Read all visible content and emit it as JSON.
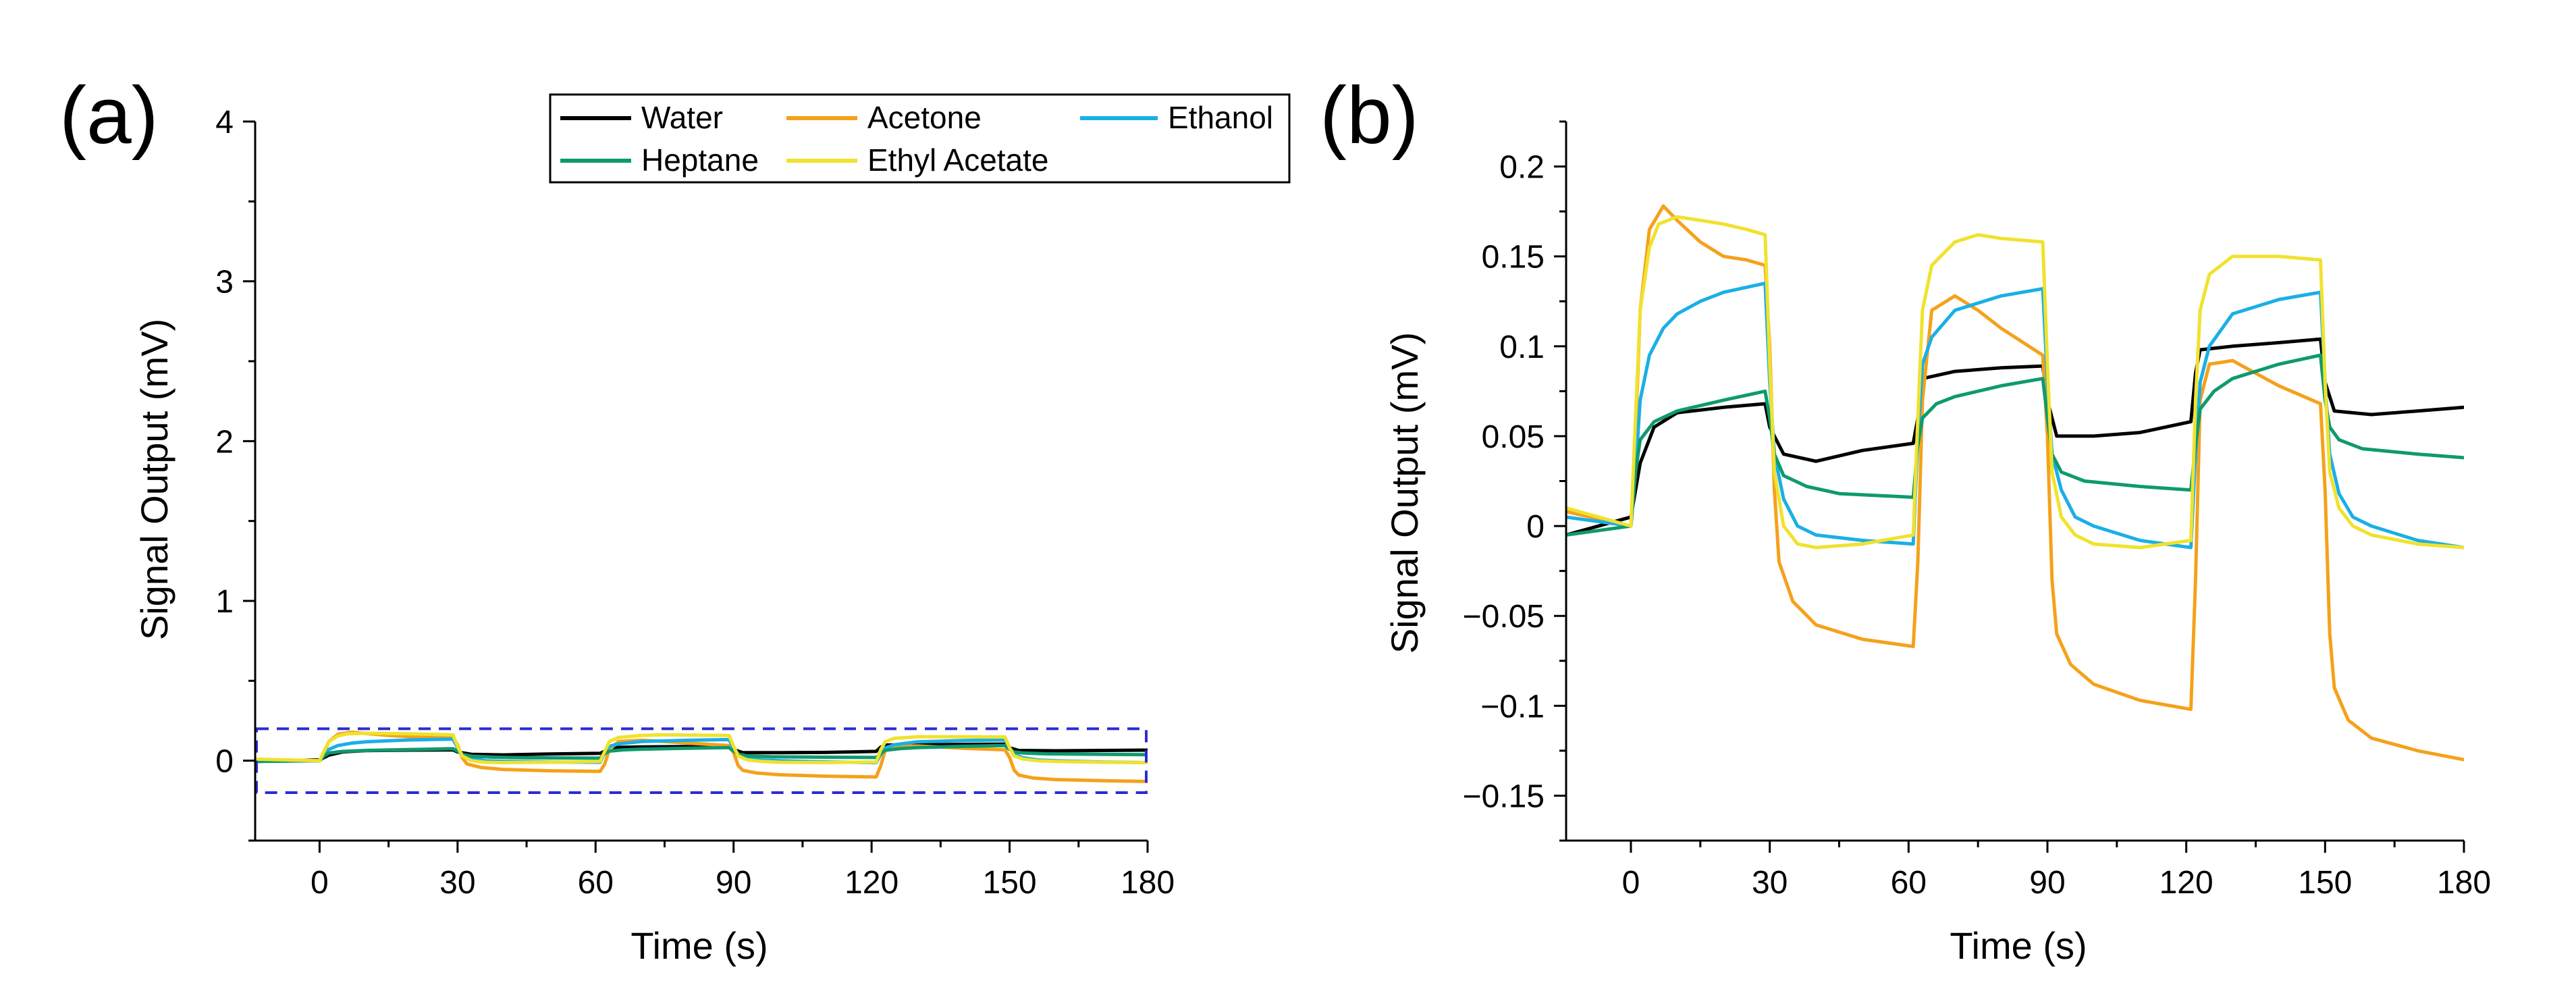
{
  "chart_data": [
    {
      "type": "line",
      "panel_label": "(a)",
      "xlabel": "Time (s)",
      "ylabel": "Signal Output (mV)",
      "xlim": [
        -14,
        180
      ],
      "ylim": [
        -0.5,
        4
      ],
      "xticks": [
        0,
        30,
        60,
        90,
        120,
        150,
        180
      ],
      "xtick_labels": [
        "0",
        "30",
        "60",
        "90",
        "120",
        "150",
        "180"
      ],
      "yticks": [
        0,
        1,
        2,
        3,
        4
      ],
      "ytick_labels": [
        "0",
        "1",
        "2",
        "3",
        "4"
      ],
      "legend": {
        "placement": "top-right",
        "columns": 3,
        "entries": [
          "Water",
          "Acetone",
          "Ethanol",
          "Heptane",
          "Ethyl Acetate"
        ]
      },
      "zoom_box": {
        "x_range": [
          -14,
          180
        ],
        "y_range": [
          -0.2,
          0.2
        ],
        "color": "#2b2bd6",
        "style": "dashed"
      },
      "series_ref": "shared_series"
    },
    {
      "type": "line",
      "panel_label": "(b)",
      "xlabel": "Time (s)",
      "ylabel": "Signal Output (mV)",
      "xlim": [
        -14,
        180
      ],
      "ylim": [
        -0.175,
        0.225
      ],
      "xticks": [
        0,
        30,
        60,
        90,
        120,
        150,
        180
      ],
      "xtick_labels": [
        "0",
        "30",
        "60",
        "90",
        "120",
        "150",
        "180"
      ],
      "yticks": [
        -0.15,
        -0.1,
        -0.05,
        0,
        0.05,
        0.1,
        0.15,
        0.2
      ],
      "ytick_labels": [
        "−0.15",
        "−0.1",
        "−0.05",
        "0",
        "0.05",
        "0.1",
        "0.15",
        "0.2"
      ],
      "series_ref": "shared_series"
    }
  ],
  "shared_series": [
    {
      "name": "Water",
      "color": "#000000",
      "x": [
        -14,
        0,
        2,
        5,
        10,
        20,
        29,
        30,
        33,
        40,
        50,
        61,
        62,
        63,
        70,
        80,
        89,
        90,
        92,
        100,
        110,
        121,
        122,
        123,
        130,
        140,
        149,
        150,
        152,
        160,
        170,
        180
      ],
      "y": [
        -0.005,
        0.005,
        0.035,
        0.055,
        0.063,
        0.066,
        0.068,
        0.055,
        0.04,
        0.036,
        0.042,
        0.046,
        0.06,
        0.082,
        0.086,
        0.088,
        0.089,
        0.07,
        0.05,
        0.05,
        0.052,
        0.058,
        0.085,
        0.098,
        0.1,
        0.102,
        0.104,
        0.08,
        0.064,
        0.062,
        0.064,
        0.066
      ]
    },
    {
      "name": "Acetone",
      "color": "#f5a11b",
      "x": [
        -14,
        0,
        1,
        2,
        4,
        7,
        10,
        15,
        20,
        25,
        29,
        30,
        31,
        32,
        35,
        40,
        50,
        61,
        62,
        63,
        65,
        70,
        75,
        80,
        89,
        90,
        91,
        92,
        95,
        100,
        110,
        121,
        122,
        123,
        125,
        130,
        135,
        140,
        149,
        150,
        151,
        152,
        155,
        160,
        170,
        180
      ],
      "y": [
        0.008,
        0.0,
        0.05,
        0.12,
        0.165,
        0.178,
        0.17,
        0.158,
        0.15,
        0.148,
        0.145,
        0.1,
        0.02,
        -0.02,
        -0.042,
        -0.055,
        -0.063,
        -0.067,
        -0.02,
        0.07,
        0.12,
        0.128,
        0.12,
        0.11,
        0.095,
        0.05,
        -0.03,
        -0.06,
        -0.077,
        -0.088,
        -0.097,
        -0.102,
        -0.03,
        0.07,
        0.09,
        0.092,
        0.085,
        0.078,
        0.068,
        0.02,
        -0.06,
        -0.09,
        -0.108,
        -0.118,
        -0.125,
        -0.13
      ]
    },
    {
      "name": "Ethanol",
      "color": "#1aafe6",
      "x": [
        -14,
        0,
        1,
        2,
        4,
        7,
        10,
        15,
        20,
        29,
        30,
        31,
        33,
        36,
        40,
        50,
        61,
        62,
        63,
        65,
        70,
        80,
        89,
        90,
        91,
        93,
        96,
        100,
        110,
        121,
        122,
        123,
        125,
        130,
        140,
        149,
        150,
        151,
        153,
        156,
        160,
        170,
        180
      ],
      "y": [
        0.005,
        0.0,
        0.03,
        0.07,
        0.095,
        0.11,
        0.118,
        0.125,
        0.13,
        0.135,
        0.08,
        0.04,
        0.015,
        0.0,
        -0.005,
        -0.008,
        -0.01,
        0.05,
        0.09,
        0.105,
        0.12,
        0.128,
        0.132,
        0.08,
        0.04,
        0.02,
        0.005,
        0.0,
        -0.008,
        -0.012,
        0.04,
        0.08,
        0.1,
        0.118,
        0.126,
        0.13,
        0.08,
        0.04,
        0.018,
        0.005,
        0.0,
        -0.008,
        -0.012
      ]
    },
    {
      "name": "Heptane",
      "color": "#0e9a6e",
      "x": [
        -14,
        0,
        1,
        2,
        5,
        10,
        20,
        29,
        30,
        31,
        33,
        38,
        45,
        61,
        62,
        63,
        66,
        70,
        80,
        89,
        90,
        91,
        93,
        98,
        110,
        121,
        122,
        123,
        126,
        130,
        140,
        149,
        150,
        151,
        153,
        158,
        170,
        180
      ],
      "y": [
        -0.005,
        0.0,
        0.03,
        0.048,
        0.058,
        0.064,
        0.07,
        0.075,
        0.06,
        0.04,
        0.028,
        0.022,
        0.018,
        0.016,
        0.045,
        0.06,
        0.068,
        0.072,
        0.078,
        0.082,
        0.06,
        0.04,
        0.03,
        0.025,
        0.022,
        0.02,
        0.045,
        0.065,
        0.075,
        0.082,
        0.09,
        0.095,
        0.07,
        0.055,
        0.048,
        0.043,
        0.04,
        0.038
      ]
    },
    {
      "name": "Ethyl Acetate",
      "color": "#f0e22e",
      "x": [
        -14,
        0,
        1,
        2,
        4,
        6,
        10,
        15,
        20,
        25,
        29,
        30,
        31,
        33,
        36,
        40,
        50,
        61,
        62,
        63,
        65,
        70,
        75,
        80,
        89,
        90,
        91,
        93,
        96,
        100,
        110,
        121,
        122,
        123,
        125,
        130,
        140,
        149,
        150,
        151,
        153,
        156,
        160,
        170,
        180
      ],
      "y": [
        0.01,
        0.0,
        0.06,
        0.12,
        0.155,
        0.168,
        0.172,
        0.17,
        0.168,
        0.165,
        0.162,
        0.09,
        0.03,
        0.0,
        -0.01,
        -0.012,
        -0.01,
        -0.005,
        0.06,
        0.12,
        0.145,
        0.158,
        0.162,
        0.16,
        0.158,
        0.09,
        0.03,
        0.005,
        -0.005,
        -0.01,
        -0.012,
        -0.008,
        0.07,
        0.12,
        0.14,
        0.15,
        0.15,
        0.148,
        0.08,
        0.03,
        0.01,
        0.0,
        -0.005,
        -0.01,
        -0.012
      ]
    }
  ]
}
